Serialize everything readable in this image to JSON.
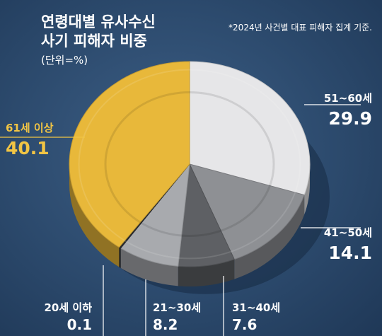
{
  "header": {
    "title_line1": "연령대별 유사수신",
    "title_line2": "사기 피해자 비중",
    "unit": "(단위=%)",
    "note": "*2024년 사건별 대표 피해자 집계 기준."
  },
  "chart_data": {
    "type": "pie",
    "title": "연령대별 유사수신 사기 피해자 비중",
    "unit": "(단위=%)",
    "slices": [
      {
        "label": "51~60세",
        "value": 29.9,
        "color": "#e6e6e8"
      },
      {
        "label": "41~50세",
        "value": 14.1,
        "color": "#8e9094"
      },
      {
        "label": "31~40세",
        "value": 7.6,
        "color": "#5e6064"
      },
      {
        "label": "21~30세",
        "value": 8.2,
        "color": "#a8aaae"
      },
      {
        "label": "20세 이하",
        "value": 0.1,
        "color": "#2b2d30"
      },
      {
        "label": "61세 이상",
        "value": 40.1,
        "color": "#e8b83a"
      }
    ]
  }
}
